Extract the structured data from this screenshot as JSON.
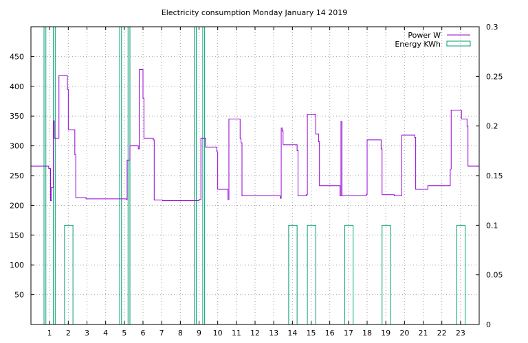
{
  "chart_data": {
    "type": "line",
    "title": "Electricity consumption Monday January 14 2019",
    "xlim": [
      0,
      24
    ],
    "ylim": [
      0,
      500
    ],
    "y2lim": [
      0,
      0.3
    ],
    "x_ticks": [
      1,
      2,
      3,
      4,
      5,
      6,
      7,
      8,
      9,
      10,
      11,
      12,
      13,
      14,
      15,
      16,
      17,
      18,
      19,
      20,
      21,
      22,
      23
    ],
    "y_ticks": [
      50,
      100,
      150,
      200,
      250,
      300,
      350,
      400,
      450
    ],
    "y2_ticks": [
      "0",
      "0.05",
      "0.1",
      "0.15",
      "0.2",
      "0.25",
      "0.3"
    ],
    "y2_tick_values": [
      0,
      0.05,
      0.1,
      0.15,
      0.2,
      0.25,
      0.3
    ],
    "grid": true,
    "legend_position": "top-right",
    "colors": {
      "power": "#9400d3",
      "energy": "#009e73"
    },
    "series": [
      {
        "name": "Power W",
        "axis": "left",
        "style": "step",
        "points": [
          [
            0,
            266
          ],
          [
            0.85,
            266
          ],
          [
            0.95,
            262
          ],
          [
            1.05,
            208
          ],
          [
            1.1,
            230
          ],
          [
            1.2,
            342
          ],
          [
            1.25,
            313
          ],
          [
            1.4,
            313
          ],
          [
            1.5,
            418
          ],
          [
            1.9,
            418
          ],
          [
            1.95,
            395
          ],
          [
            2.0,
            327
          ],
          [
            2.3,
            327
          ],
          [
            2.35,
            285
          ],
          [
            2.4,
            213
          ],
          [
            2.9,
            213
          ],
          [
            2.95,
            211
          ],
          [
            5.0,
            211
          ],
          [
            5.1,
            210
          ],
          [
            5.15,
            276
          ],
          [
            5.3,
            300
          ],
          [
            5.7,
            300
          ],
          [
            5.75,
            295
          ],
          [
            5.8,
            428
          ],
          [
            5.95,
            428
          ],
          [
            6.0,
            380
          ],
          [
            6.05,
            313
          ],
          [
            6.5,
            313
          ],
          [
            6.55,
            310
          ],
          [
            6.6,
            209
          ],
          [
            7.0,
            209
          ],
          [
            7.05,
            208
          ],
          [
            8.9,
            208
          ],
          [
            9.0,
            210
          ],
          [
            9.1,
            313
          ],
          [
            9.3,
            313
          ],
          [
            9.35,
            298
          ],
          [
            9.9,
            298
          ],
          [
            9.95,
            290
          ],
          [
            10.0,
            227
          ],
          [
            10.5,
            227
          ],
          [
            10.55,
            210
          ],
          [
            10.6,
            345
          ],
          [
            11.15,
            345
          ],
          [
            11.2,
            312
          ],
          [
            11.25,
            305
          ],
          [
            11.3,
            216
          ],
          [
            13.3,
            216
          ],
          [
            13.35,
            212
          ],
          [
            13.4,
            330
          ],
          [
            13.45,
            325
          ],
          [
            13.5,
            302
          ],
          [
            14.2,
            302
          ],
          [
            14.25,
            292
          ],
          [
            14.3,
            216
          ],
          [
            14.7,
            216
          ],
          [
            14.75,
            218
          ],
          [
            14.8,
            353
          ],
          [
            15.2,
            353
          ],
          [
            15.25,
            320
          ],
          [
            15.35,
            320
          ],
          [
            15.4,
            307
          ],
          [
            15.45,
            233
          ],
          [
            16.5,
            233
          ],
          [
            16.55,
            216
          ],
          [
            16.6,
            341
          ],
          [
            16.65,
            216
          ],
          [
            17.9,
            216
          ],
          [
            17.95,
            218
          ],
          [
            18.0,
            310
          ],
          [
            18.7,
            310
          ],
          [
            18.75,
            295
          ],
          [
            18.8,
            218
          ],
          [
            19.4,
            218
          ],
          [
            19.45,
            216
          ],
          [
            19.8,
            216
          ],
          [
            19.85,
            318
          ],
          [
            20.5,
            318
          ],
          [
            20.55,
            314
          ],
          [
            20.6,
            227
          ],
          [
            21.2,
            227
          ],
          [
            21.25,
            233
          ],
          [
            22.4,
            233
          ],
          [
            22.45,
            261
          ],
          [
            22.5,
            360
          ],
          [
            23.0,
            360
          ],
          [
            23.05,
            345
          ],
          [
            23.3,
            345
          ],
          [
            23.35,
            333
          ],
          [
            23.4,
            266
          ],
          [
            24.0,
            266
          ]
        ]
      },
      {
        "name": "Energy KWh",
        "axis": "right",
        "style": "impulse-boxes",
        "bars": [
          [
            0.7,
            0.8,
            0.3
          ],
          [
            1.2,
            1.3,
            0.3
          ],
          [
            1.8,
            2.25,
            0.1
          ],
          [
            4.75,
            4.85,
            0.3
          ],
          [
            5.2,
            5.3,
            0.3
          ],
          [
            8.75,
            8.85,
            0.3
          ],
          [
            9.2,
            9.3,
            0.3
          ],
          [
            13.8,
            14.25,
            0.1
          ],
          [
            14.8,
            15.25,
            0.1
          ],
          [
            16.8,
            17.25,
            0.1
          ],
          [
            18.8,
            19.25,
            0.1
          ],
          [
            22.8,
            23.25,
            0.1
          ]
        ]
      }
    ]
  }
}
